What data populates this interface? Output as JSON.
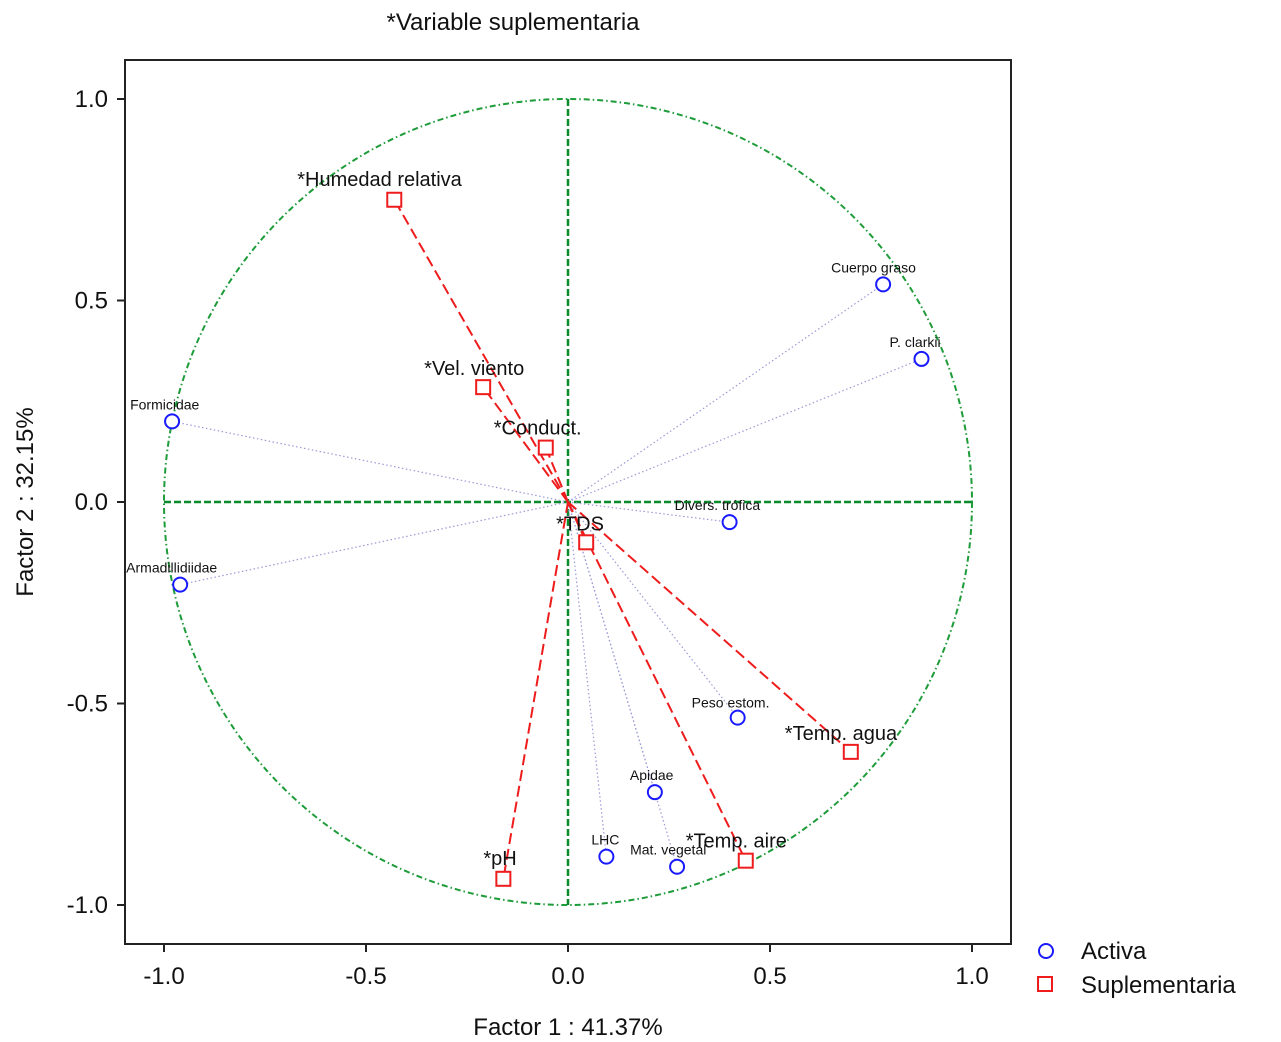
{
  "chart_data": {
    "type": "scatter",
    "title": "*Variable suplementaria",
    "xlabel": "Factor 1 : 41.37%",
    "ylabel": "Factor 2 : 32.15%",
    "xlim": [
      -1.1,
      1.1
    ],
    "ylim": [
      -1.1,
      1.1
    ],
    "xticks": [
      "-1.0",
      "-0.5",
      "0.0",
      "0.5",
      "1.0"
    ],
    "yticks": [
      "1.0",
      "0.5",
      "0.0",
      "-0.5",
      "-1.0"
    ],
    "unit_circle": true,
    "legend_placement": "bottom-right",
    "series": [
      {
        "name": "Activa",
        "marker": "circle",
        "color": "#1a1aff",
        "points": [
          {
            "label": "Cuerpo graso",
            "x": 0.78,
            "y": 0.54
          },
          {
            "label": "P. clarkii",
            "x": 0.875,
            "y": 0.355
          },
          {
            "label": "Formicidae",
            "x": -0.98,
            "y": 0.2
          },
          {
            "label": "Divers. trófica",
            "x": 0.4,
            "y": -0.05
          },
          {
            "label": "Armadillidiidae",
            "x": -0.96,
            "y": -0.205
          },
          {
            "label": "Peso estom.",
            "x": 0.42,
            "y": -0.535
          },
          {
            "label": "Apidae",
            "x": 0.215,
            "y": -0.72
          },
          {
            "label": "LHC",
            "x": 0.095,
            "y": -0.88
          },
          {
            "label": "Mat. vegetal",
            "x": 0.27,
            "y": -0.905
          }
        ]
      },
      {
        "name": "Suplementaria",
        "marker": "square",
        "color": "#ee1c1c",
        "points": [
          {
            "label": "*Humedad relativa",
            "x": -0.43,
            "y": 0.75
          },
          {
            "label": "*Vel. viento",
            "x": -0.21,
            "y": 0.285
          },
          {
            "label": "*Conduct.",
            "x": -0.055,
            "y": 0.135
          },
          {
            "label": "*TDS",
            "x": 0.045,
            "y": -0.1
          },
          {
            "label": "*Temp. agua",
            "x": 0.7,
            "y": -0.62
          },
          {
            "label": "*Temp. aire",
            "x": 0.44,
            "y": -0.89
          },
          {
            "label": "*pH",
            "x": -0.16,
            "y": -0.935
          }
        ]
      }
    ]
  },
  "colors": {
    "axis_cross": "#0a8a2a",
    "circle": "#1e9c3a",
    "active_marker": "#1a1aff",
    "supplementary_marker": "#ee1c1c",
    "active_vector": "#9a9ad8"
  }
}
